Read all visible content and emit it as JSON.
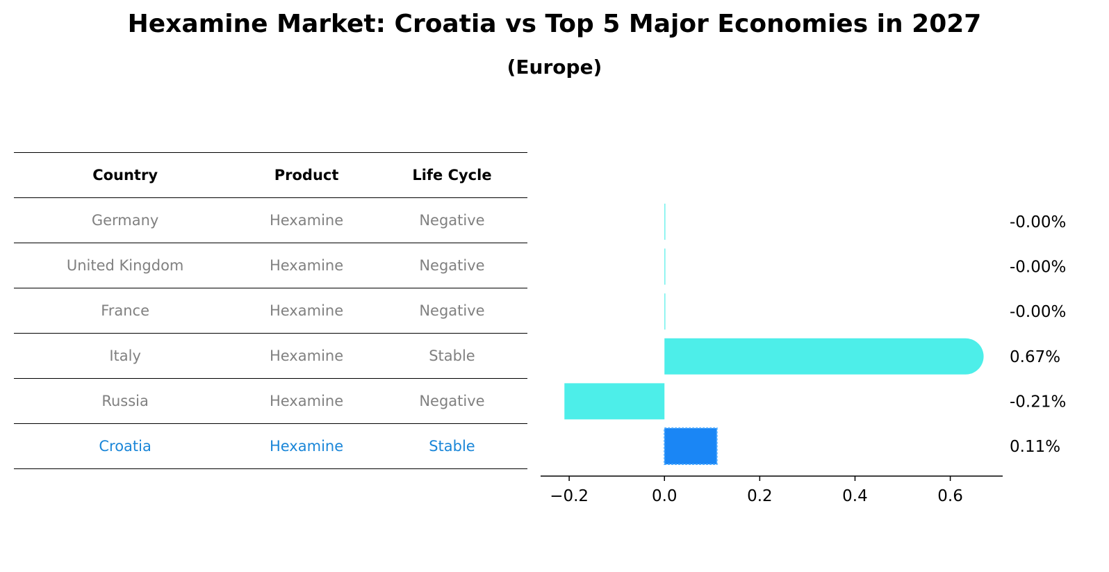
{
  "title": "Hexamine Market: Croatia vs Top 5 Major Economies in 2027",
  "subtitle": "(Europe)",
  "table": {
    "headers": [
      "Country",
      "Product",
      "Life Cycle"
    ],
    "rows": [
      [
        "Germany",
        "Hexamine",
        "Negative"
      ],
      [
        "United Kingdom",
        "Hexamine",
        "Negative"
      ],
      [
        "France",
        "Hexamine",
        "Negative"
      ],
      [
        "Italy",
        "Hexamine",
        "Stable"
      ],
      [
        "Russia",
        "Hexamine",
        "Negative"
      ],
      [
        "Croatia",
        "Hexamine",
        "Stable"
      ]
    ],
    "highlight_row": 5
  },
  "colors": {
    "bar": "#4deee9",
    "highlight": "#1a86f5",
    "muted_text": "#808080",
    "highlight_text": "#1a86d8"
  },
  "chart_data": {
    "type": "bar",
    "orientation": "horizontal",
    "categories": [
      "Germany",
      "United Kingdom",
      "France",
      "Italy",
      "Russia",
      "Croatia"
    ],
    "values": [
      -0.0,
      -0.0,
      -0.0,
      0.67,
      -0.21,
      0.11
    ],
    "value_labels": [
      "-0.00%",
      "-0.00%",
      "-0.00%",
      "0.67%",
      "-0.21%",
      "0.11%"
    ],
    "xlim": [
      -0.26,
      0.71
    ],
    "xticks": [
      -0.2,
      0.0,
      0.2,
      0.4,
      0.6
    ],
    "xtick_labels": [
      "−0.2",
      "0.0",
      "0.2",
      "0.4",
      "0.6"
    ],
    "highlight_index": 5,
    "grid": false
  }
}
